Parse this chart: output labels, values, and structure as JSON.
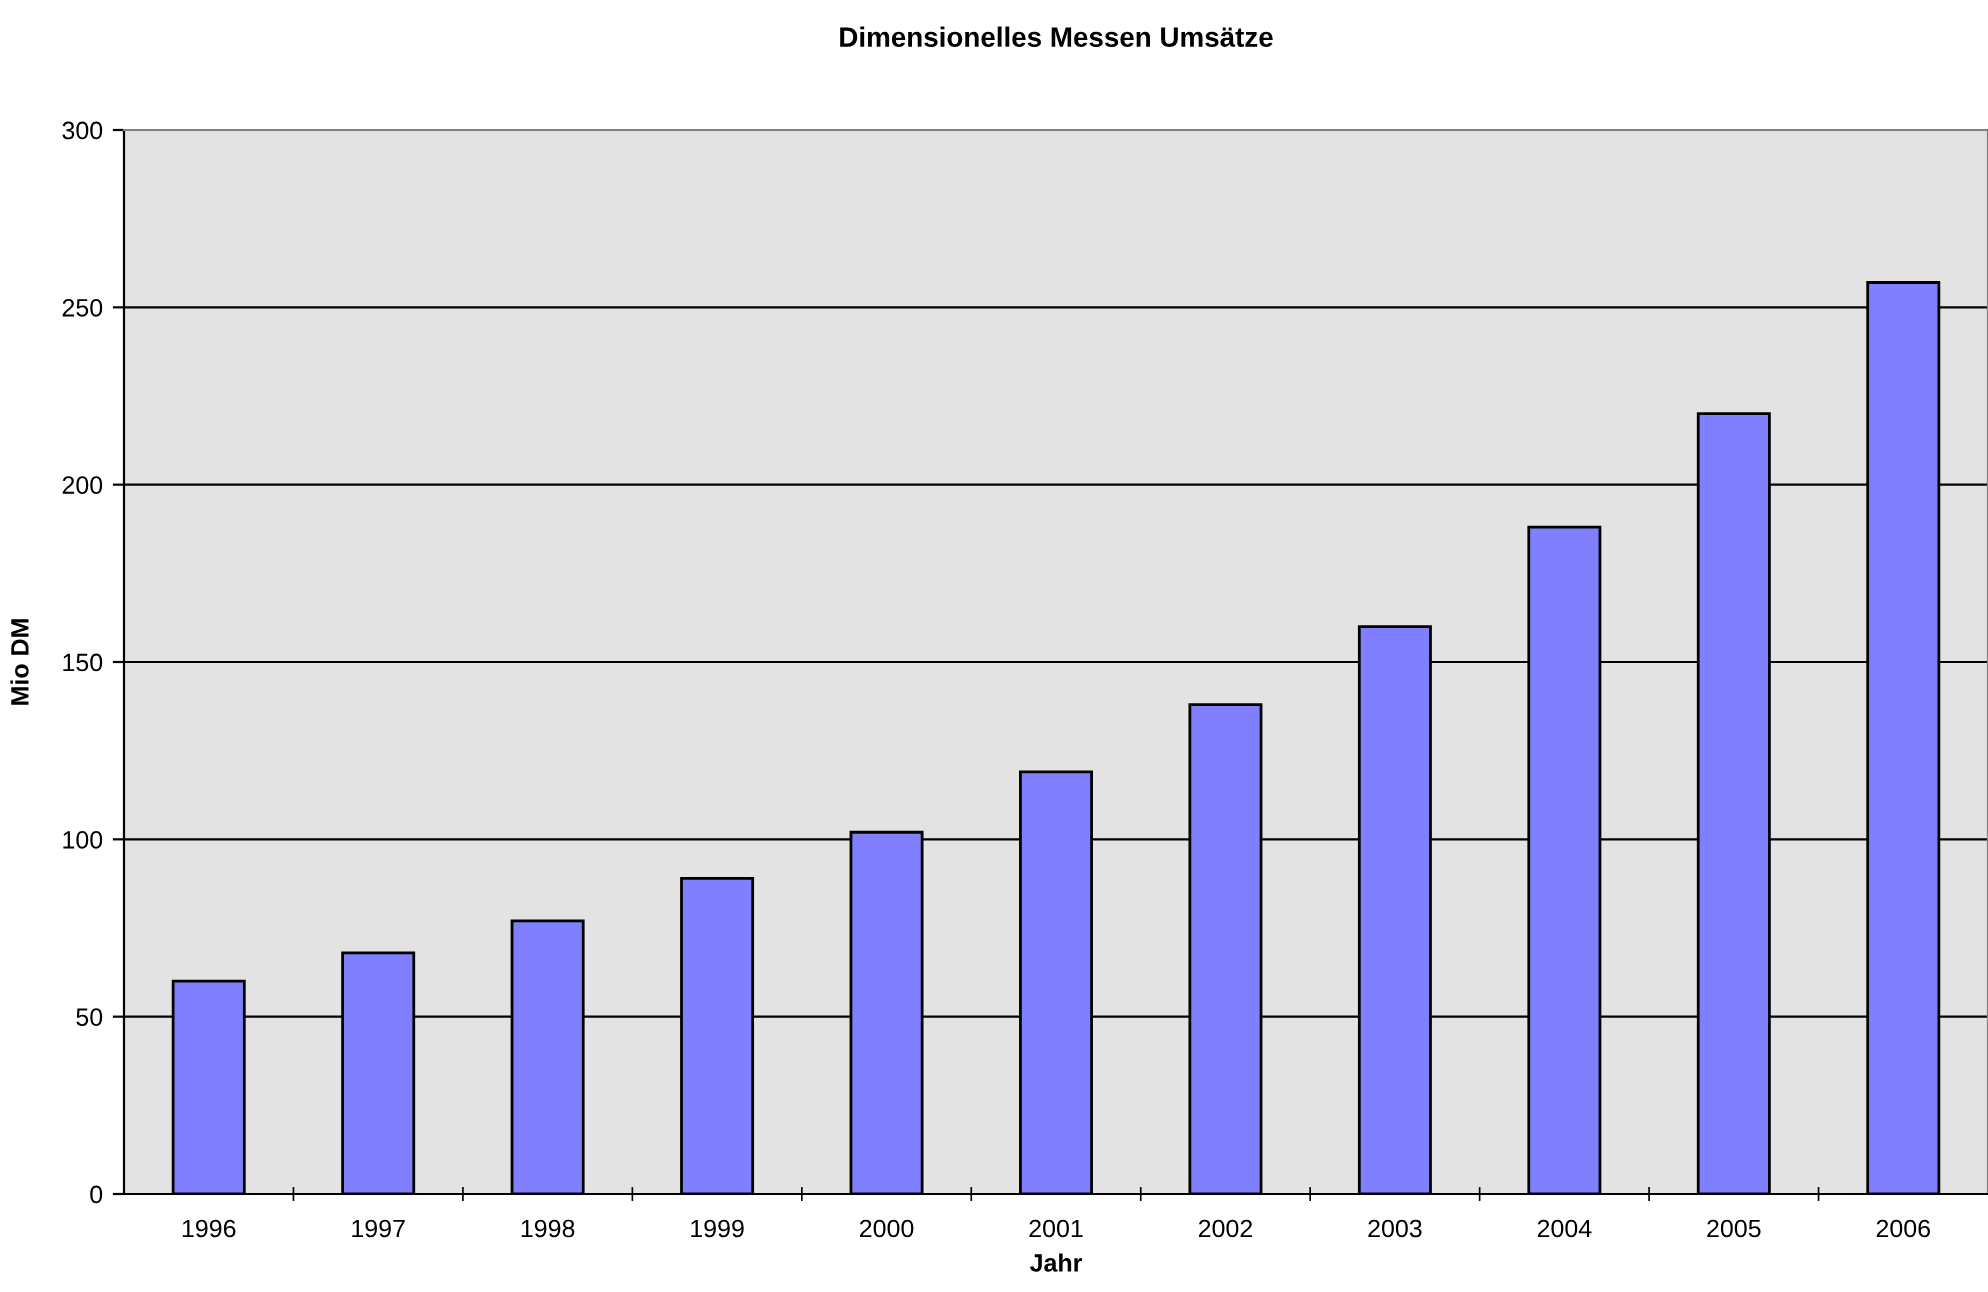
{
  "chart_data": {
    "type": "bar",
    "title": "Dimensionelles Messen Umsätze",
    "xlabel": "Jahr",
    "ylabel": "Mio DM",
    "categories": [
      "1996",
      "1997",
      "1998",
      "1999",
      "2000",
      "2001",
      "2002",
      "2003",
      "2004",
      "2005",
      "2006"
    ],
    "values": [
      60,
      68,
      77,
      89,
      102,
      119,
      138,
      160,
      188,
      220,
      257
    ],
    "color": "#8080ff",
    "ylim": [
      0,
      300
    ],
    "yticks": [
      0,
      50,
      100,
      150,
      200,
      250,
      300
    ],
    "grid": "y"
  }
}
